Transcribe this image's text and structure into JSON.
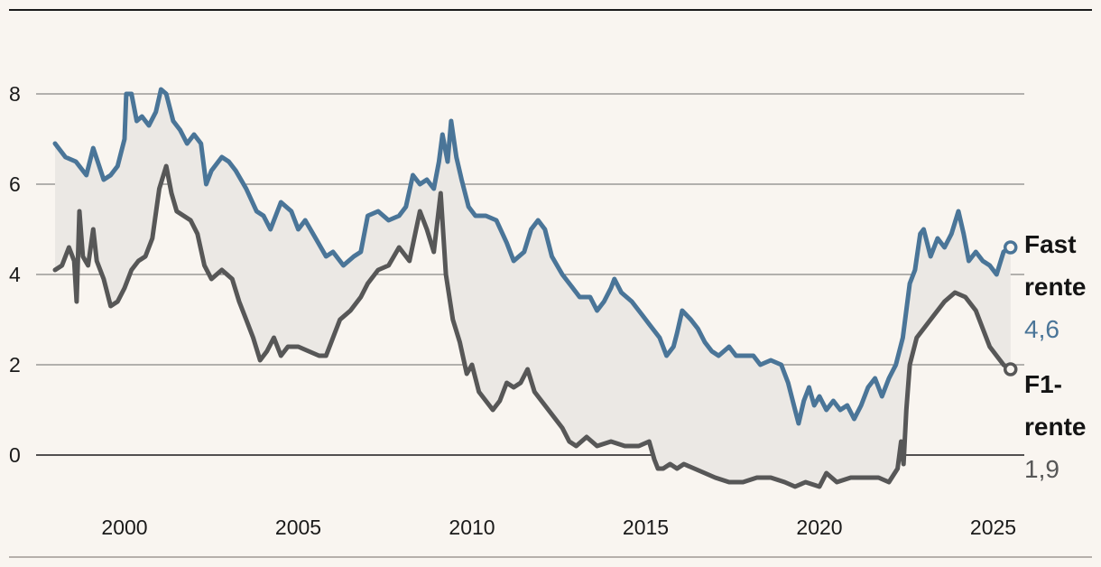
{
  "chart_data": {
    "type": "line",
    "title": "",
    "xlabel": "",
    "ylabel": "",
    "xlim": [
      1998.0,
      2025.5
    ],
    "ylim": [
      -1,
      9
    ],
    "y_ticks": [
      0,
      2,
      4,
      6,
      8
    ],
    "x_ticks": [
      2000,
      2005,
      2010,
      2015,
      2020,
      2025
    ],
    "grid": "horizontal",
    "legend": "end-labels-right",
    "fill_between_series": true,
    "colors": {
      "fast": "#4a7598",
      "f1": "#575757",
      "fill": "#ebe8e4",
      "grid": "#3a3a3a",
      "background": "#f9f5f0"
    },
    "series": [
      {
        "key": "fast",
        "label_lines": [
          "Fast",
          "rente"
        ],
        "end_value_label": "4,6",
        "points": [
          [
            1998.0,
            6.9
          ],
          [
            1998.3,
            6.6
          ],
          [
            1998.6,
            6.5
          ],
          [
            1998.9,
            6.2
          ],
          [
            1999.1,
            6.8
          ],
          [
            1999.4,
            6.1
          ],
          [
            1999.6,
            6.2
          ],
          [
            1999.8,
            6.4
          ],
          [
            2000.0,
            7.0
          ],
          [
            2000.05,
            8.0
          ],
          [
            2000.2,
            8.0
          ],
          [
            2000.35,
            7.4
          ],
          [
            2000.5,
            7.5
          ],
          [
            2000.7,
            7.3
          ],
          [
            2000.9,
            7.6
          ],
          [
            2001.05,
            8.1
          ],
          [
            2001.2,
            8.0
          ],
          [
            2001.4,
            7.4
          ],
          [
            2001.6,
            7.2
          ],
          [
            2001.8,
            6.9
          ],
          [
            2002.0,
            7.1
          ],
          [
            2002.2,
            6.9
          ],
          [
            2002.35,
            6.0
          ],
          [
            2002.5,
            6.3
          ],
          [
            2002.8,
            6.6
          ],
          [
            2003.0,
            6.5
          ],
          [
            2003.2,
            6.3
          ],
          [
            2003.5,
            5.9
          ],
          [
            2003.8,
            5.4
          ],
          [
            2004.0,
            5.3
          ],
          [
            2004.2,
            5.0
          ],
          [
            2004.5,
            5.6
          ],
          [
            2004.8,
            5.4
          ],
          [
            2005.0,
            5.0
          ],
          [
            2005.2,
            5.2
          ],
          [
            2005.5,
            4.8
          ],
          [
            2005.8,
            4.4
          ],
          [
            2006.0,
            4.5
          ],
          [
            2006.3,
            4.2
          ],
          [
            2006.6,
            4.4
          ],
          [
            2006.8,
            4.5
          ],
          [
            2007.0,
            5.3
          ],
          [
            2007.3,
            5.4
          ],
          [
            2007.6,
            5.2
          ],
          [
            2007.9,
            5.3
          ],
          [
            2008.1,
            5.5
          ],
          [
            2008.3,
            6.2
          ],
          [
            2008.5,
            6.0
          ],
          [
            2008.7,
            6.1
          ],
          [
            2008.9,
            5.9
          ],
          [
            2009.05,
            6.5
          ],
          [
            2009.15,
            7.1
          ],
          [
            2009.3,
            6.5
          ],
          [
            2009.4,
            7.4
          ],
          [
            2009.55,
            6.6
          ],
          [
            2009.7,
            6.1
          ],
          [
            2009.9,
            5.5
          ],
          [
            2010.1,
            5.3
          ],
          [
            2010.4,
            5.3
          ],
          [
            2010.7,
            5.2
          ],
          [
            2011.0,
            4.7
          ],
          [
            2011.2,
            4.3
          ],
          [
            2011.5,
            4.5
          ],
          [
            2011.7,
            5.0
          ],
          [
            2011.9,
            5.2
          ],
          [
            2012.1,
            5.0
          ],
          [
            2012.3,
            4.4
          ],
          [
            2012.6,
            4.0
          ],
          [
            2012.9,
            3.7
          ],
          [
            2013.1,
            3.5
          ],
          [
            2013.4,
            3.5
          ],
          [
            2013.6,
            3.2
          ],
          [
            2013.8,
            3.4
          ],
          [
            2014.0,
            3.7
          ],
          [
            2014.1,
            3.9
          ],
          [
            2014.3,
            3.6
          ],
          [
            2014.6,
            3.4
          ],
          [
            2014.9,
            3.1
          ],
          [
            2015.1,
            2.9
          ],
          [
            2015.4,
            2.6
          ],
          [
            2015.6,
            2.2
          ],
          [
            2015.8,
            2.4
          ],
          [
            2015.9,
            2.7
          ],
          [
            2016.05,
            3.2
          ],
          [
            2016.3,
            3.0
          ],
          [
            2016.5,
            2.8
          ],
          [
            2016.7,
            2.5
          ],
          [
            2016.9,
            2.3
          ],
          [
            2017.1,
            2.2
          ],
          [
            2017.4,
            2.4
          ],
          [
            2017.6,
            2.2
          ],
          [
            2017.9,
            2.2
          ],
          [
            2018.1,
            2.2
          ],
          [
            2018.3,
            2.0
          ],
          [
            2018.6,
            2.1
          ],
          [
            2018.9,
            2.0
          ],
          [
            2019.1,
            1.6
          ],
          [
            2019.3,
            1.0
          ],
          [
            2019.4,
            0.7
          ],
          [
            2019.55,
            1.2
          ],
          [
            2019.7,
            1.5
          ],
          [
            2019.85,
            1.1
          ],
          [
            2020.0,
            1.3
          ],
          [
            2020.2,
            1.0
          ],
          [
            2020.4,
            1.2
          ],
          [
            2020.6,
            1.0
          ],
          [
            2020.8,
            1.1
          ],
          [
            2021.0,
            0.8
          ],
          [
            2021.2,
            1.1
          ],
          [
            2021.4,
            1.5
          ],
          [
            2021.6,
            1.7
          ],
          [
            2021.8,
            1.3
          ],
          [
            2022.0,
            1.7
          ],
          [
            2022.2,
            2.0
          ],
          [
            2022.4,
            2.6
          ],
          [
            2022.6,
            3.8
          ],
          [
            2022.75,
            4.1
          ],
          [
            2022.9,
            4.9
          ],
          [
            2023.0,
            5.0
          ],
          [
            2023.2,
            4.4
          ],
          [
            2023.4,
            4.8
          ],
          [
            2023.6,
            4.6
          ],
          [
            2023.8,
            4.9
          ],
          [
            2024.0,
            5.4
          ],
          [
            2024.15,
            4.9
          ],
          [
            2024.3,
            4.3
          ],
          [
            2024.5,
            4.5
          ],
          [
            2024.7,
            4.3
          ],
          [
            2024.9,
            4.2
          ],
          [
            2025.1,
            4.0
          ],
          [
            2025.3,
            4.5
          ],
          [
            2025.5,
            4.6
          ]
        ]
      },
      {
        "key": "f1",
        "label_lines": [
          "F1-",
          "rente"
        ],
        "end_value_label": "1,9",
        "points": [
          [
            1998.0,
            4.1
          ],
          [
            1998.2,
            4.2
          ],
          [
            1998.4,
            4.6
          ],
          [
            1998.55,
            4.3
          ],
          [
            1998.62,
            3.4
          ],
          [
            1998.7,
            5.4
          ],
          [
            1998.8,
            4.4
          ],
          [
            1998.95,
            4.2
          ],
          [
            1999.1,
            5.0
          ],
          [
            1999.2,
            4.3
          ],
          [
            1999.4,
            3.9
          ],
          [
            1999.6,
            3.3
          ],
          [
            1999.8,
            3.4
          ],
          [
            2000.0,
            3.7
          ],
          [
            2000.2,
            4.1
          ],
          [
            2000.4,
            4.3
          ],
          [
            2000.6,
            4.4
          ],
          [
            2000.8,
            4.8
          ],
          [
            2001.0,
            5.9
          ],
          [
            2001.2,
            6.4
          ],
          [
            2001.35,
            5.8
          ],
          [
            2001.5,
            5.4
          ],
          [
            2001.7,
            5.3
          ],
          [
            2001.9,
            5.2
          ],
          [
            2002.1,
            4.9
          ],
          [
            2002.3,
            4.2
          ],
          [
            2002.5,
            3.9
          ],
          [
            2002.8,
            4.1
          ],
          [
            2003.1,
            3.9
          ],
          [
            2003.3,
            3.4
          ],
          [
            2003.5,
            3.0
          ],
          [
            2003.7,
            2.6
          ],
          [
            2003.9,
            2.1
          ],
          [
            2004.1,
            2.3
          ],
          [
            2004.3,
            2.6
          ],
          [
            2004.5,
            2.2
          ],
          [
            2004.7,
            2.4
          ],
          [
            2005.0,
            2.4
          ],
          [
            2005.3,
            2.3
          ],
          [
            2005.6,
            2.2
          ],
          [
            2005.8,
            2.2
          ],
          [
            2006.0,
            2.6
          ],
          [
            2006.2,
            3.0
          ],
          [
            2006.5,
            3.2
          ],
          [
            2006.8,
            3.5
          ],
          [
            2007.0,
            3.8
          ],
          [
            2007.3,
            4.1
          ],
          [
            2007.6,
            4.2
          ],
          [
            2007.9,
            4.6
          ],
          [
            2008.2,
            4.3
          ],
          [
            2008.5,
            5.4
          ],
          [
            2008.7,
            5.0
          ],
          [
            2008.9,
            4.5
          ],
          [
            2009.1,
            5.8
          ],
          [
            2009.25,
            4.0
          ],
          [
            2009.45,
            3.0
          ],
          [
            2009.65,
            2.5
          ],
          [
            2009.85,
            1.8
          ],
          [
            2010.0,
            2.0
          ],
          [
            2010.2,
            1.4
          ],
          [
            2010.4,
            1.2
          ],
          [
            2010.6,
            1.0
          ],
          [
            2010.8,
            1.2
          ],
          [
            2011.0,
            1.6
          ],
          [
            2011.2,
            1.5
          ],
          [
            2011.4,
            1.6
          ],
          [
            2011.6,
            1.9
          ],
          [
            2011.8,
            1.4
          ],
          [
            2012.0,
            1.2
          ],
          [
            2012.2,
            1.0
          ],
          [
            2012.4,
            0.8
          ],
          [
            2012.6,
            0.6
          ],
          [
            2012.8,
            0.3
          ],
          [
            2013.0,
            0.2
          ],
          [
            2013.3,
            0.4
          ],
          [
            2013.6,
            0.2
          ],
          [
            2014.0,
            0.3
          ],
          [
            2014.4,
            0.2
          ],
          [
            2014.8,
            0.2
          ],
          [
            2015.1,
            0.3
          ],
          [
            2015.25,
            -0.1
          ],
          [
            2015.35,
            -0.3
          ],
          [
            2015.5,
            -0.3
          ],
          [
            2015.7,
            -0.2
          ],
          [
            2015.9,
            -0.3
          ],
          [
            2016.1,
            -0.2
          ],
          [
            2016.4,
            -0.3
          ],
          [
            2016.7,
            -0.4
          ],
          [
            2017.0,
            -0.5
          ],
          [
            2017.4,
            -0.6
          ],
          [
            2017.8,
            -0.6
          ],
          [
            2018.2,
            -0.5
          ],
          [
            2018.6,
            -0.5
          ],
          [
            2019.0,
            -0.6
          ],
          [
            2019.3,
            -0.7
          ],
          [
            2019.6,
            -0.6
          ],
          [
            2020.0,
            -0.7
          ],
          [
            2020.2,
            -0.4
          ],
          [
            2020.5,
            -0.6
          ],
          [
            2020.9,
            -0.5
          ],
          [
            2021.3,
            -0.5
          ],
          [
            2021.7,
            -0.5
          ],
          [
            2022.0,
            -0.6
          ],
          [
            2022.25,
            -0.3
          ],
          [
            2022.35,
            0.3
          ],
          [
            2022.42,
            -0.2
          ],
          [
            2022.5,
            1.0
          ],
          [
            2022.6,
            2.0
          ],
          [
            2022.8,
            2.6
          ],
          [
            2023.0,
            2.8
          ],
          [
            2023.3,
            3.1
          ],
          [
            2023.6,
            3.4
          ],
          [
            2023.9,
            3.6
          ],
          [
            2024.2,
            3.5
          ],
          [
            2024.5,
            3.2
          ],
          [
            2024.7,
            2.8
          ],
          [
            2024.9,
            2.4
          ],
          [
            2025.1,
            2.2
          ],
          [
            2025.3,
            2.0
          ],
          [
            2025.5,
            1.9
          ]
        ]
      }
    ]
  }
}
